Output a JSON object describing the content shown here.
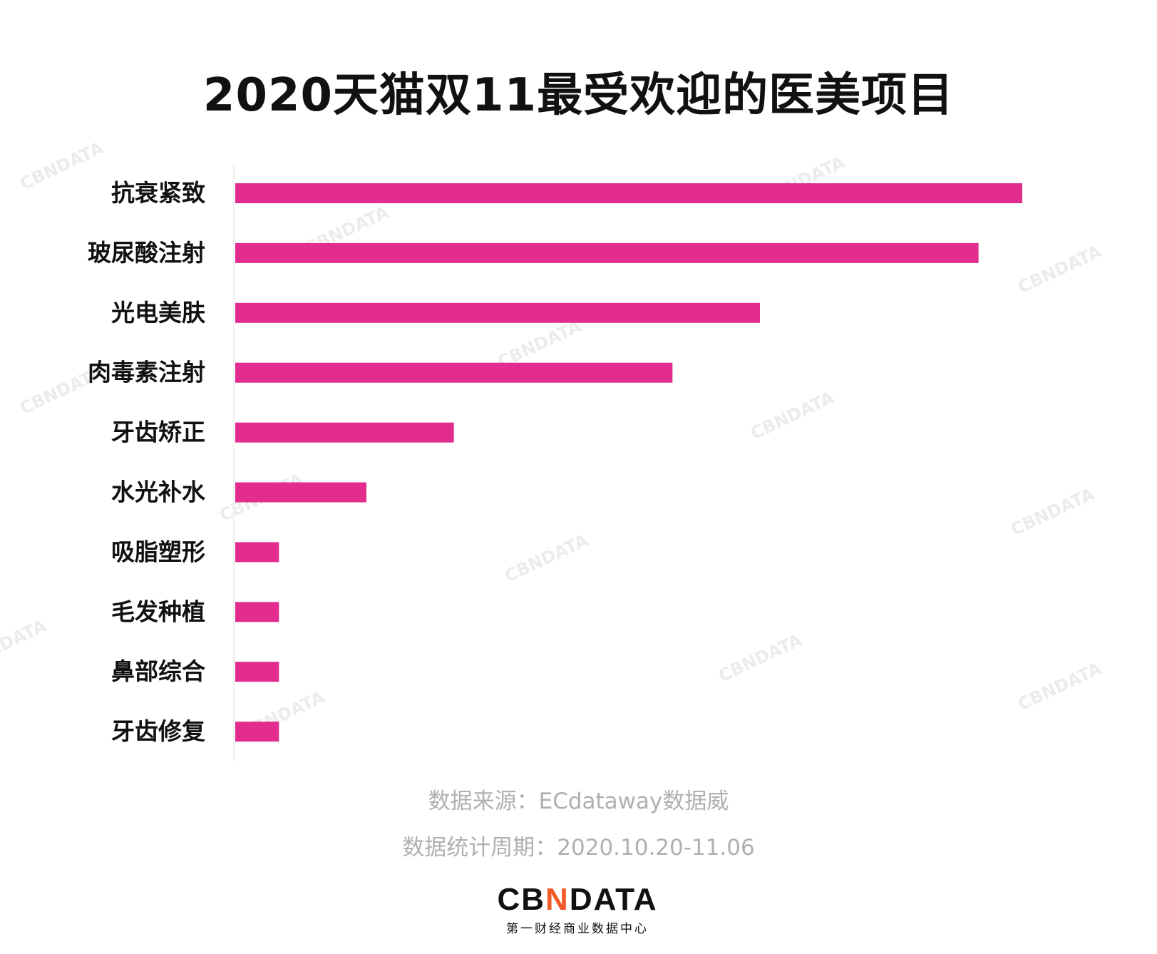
{
  "chart_data": {
    "type": "bar",
    "orientation": "horizontal",
    "title": "2020天猫双11最受欢迎的医美项目",
    "categories": [
      "抗衰紧致",
      "玻尿酸注射",
      "光电美肤",
      "肉毒素注射",
      "牙齿矫正",
      "水光补水",
      "吸脂塑形",
      "毛发种植",
      "鼻部综合",
      "牙齿修复"
    ],
    "values": [
      18,
      17,
      12,
      10,
      5,
      3,
      1,
      1,
      1,
      1
    ],
    "xlabel": "",
    "ylabel": "",
    "xlim": [
      0,
      18
    ],
    "grid": false,
    "bar_color": "#e22d8f"
  },
  "footer": {
    "source": "数据来源：ECdataway数据威",
    "period": "数据统计周期：2020.10.20-11.06"
  },
  "logo": {
    "text_a": "CB",
    "text_x": "N",
    "text_b": "DATA",
    "subtitle": "第一财经商业数据中心"
  },
  "watermark": "CBNDATA"
}
